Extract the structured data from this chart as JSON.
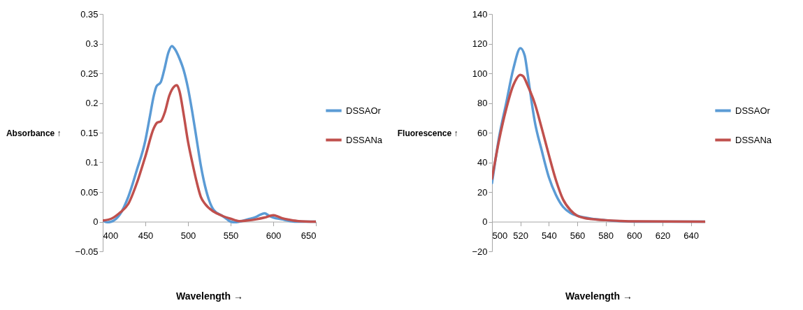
{
  "chart_data": [
    {
      "type": "line",
      "xlabel": "Wavelength →",
      "ylabel": "Absorbance ↑",
      "xlim": [
        400,
        650
      ],
      "xticks": [
        400,
        450,
        500,
        550,
        600,
        650
      ],
      "ylim": [
        -0.05,
        0.35
      ],
      "yticks": [
        -0.05,
        0,
        0.05,
        0.1,
        0.15,
        0.2,
        0.25,
        0.3,
        0.35
      ],
      "grid": false,
      "legend": "right",
      "marker": "none",
      "line_style": "solid",
      "series": [
        {
          "name": "DSSAOr",
          "color": "#5b9bd5",
          "x": [
            400,
            405,
            410,
            420,
            430,
            440,
            450,
            455,
            460,
            463,
            468,
            472,
            477,
            481,
            485,
            490,
            495,
            500,
            505,
            510,
            515,
            520,
            525,
            530,
            540,
            545,
            550,
            555,
            560,
            570,
            580,
            585,
            590,
            595,
            600,
            610,
            620,
            630,
            650
          ],
          "values": [
            0.002,
            -0.001,
            0,
            0.012,
            0.042,
            0.087,
            0.137,
            0.175,
            0.213,
            0.228,
            0.235,
            0.255,
            0.285,
            0.296,
            0.29,
            0.275,
            0.255,
            0.225,
            0.185,
            0.14,
            0.095,
            0.06,
            0.035,
            0.02,
            0.01,
            0.005,
            0,
            -0.001,
            0,
            0.004,
            0.008,
            0.012,
            0.014,
            0.01,
            0.007,
            0.004,
            0.001,
            0,
            0
          ]
        },
        {
          "name": "DSSANa",
          "color": "#c0504d",
          "x": [
            400,
            410,
            420,
            430,
            440,
            450,
            460,
            464,
            468,
            473,
            478,
            484,
            487,
            490,
            495,
            500,
            505,
            510,
            515,
            520,
            530,
            540,
            550,
            560,
            570,
            580,
            590,
            600,
            605,
            610,
            620,
            630,
            650
          ],
          "values": [
            0.002,
            0.005,
            0.015,
            0.03,
            0.065,
            0.11,
            0.158,
            0.167,
            0.169,
            0.185,
            0.212,
            0.228,
            0.23,
            0.22,
            0.18,
            0.135,
            0.1,
            0.068,
            0.042,
            0.03,
            0.017,
            0.01,
            0.005,
            0.001,
            0.002,
            0.004,
            0.007,
            0.011,
            0.009,
            0.006,
            0.003,
            0.001,
            0
          ]
        }
      ]
    },
    {
      "type": "line",
      "xlabel": "Wavelength →",
      "ylabel": "Fluorescence ↑",
      "xlim": [
        500,
        650
      ],
      "xticks": [
        500,
        520,
        540,
        560,
        580,
        600,
        620,
        640
      ],
      "ylim": [
        -20,
        140
      ],
      "yticks": [
        -20,
        0,
        20,
        40,
        60,
        80,
        100,
        120,
        140
      ],
      "grid": false,
      "legend": "right",
      "marker": "none",
      "line_style": "solid",
      "series": [
        {
          "name": "DSSAOr",
          "color": "#5b9bd5",
          "x": [
            500,
            505,
            510,
            515,
            520,
            523,
            525,
            528,
            530,
            535,
            540,
            545,
            550,
            555,
            560,
            570,
            580,
            590,
            600,
            650
          ],
          "values": [
            26,
            57,
            80,
            103,
            117,
            112,
            100,
            80,
            68,
            48,
            30,
            18,
            10,
            6,
            4,
            2,
            1,
            0.3,
            0,
            0
          ]
        },
        {
          "name": "DSSANa",
          "color": "#c0504d",
          "x": [
            500,
            505,
            510,
            515,
            520,
            522,
            525,
            530,
            535,
            540,
            545,
            550,
            555,
            560,
            565,
            570,
            580,
            590,
            600,
            650
          ],
          "values": [
            29,
            55,
            76,
            92,
            99,
            98,
            92,
            80,
            63,
            45,
            28,
            15,
            8,
            4,
            2.5,
            1.8,
            1,
            0.5,
            0.2,
            0
          ]
        }
      ]
    }
  ]
}
